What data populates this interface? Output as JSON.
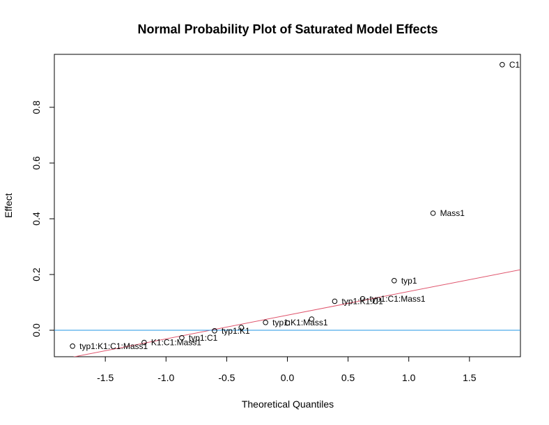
{
  "chart_data": {
    "type": "scatter",
    "title": "Normal Probability Plot of Saturated Model Effects",
    "xlabel": "Theoretical Quantiles",
    "ylabel": "Effect",
    "xlim": [
      -1.92,
      1.92
    ],
    "ylim": [
      -0.095,
      0.99
    ],
    "xticks": [
      -1.5,
      -1.0,
      -0.5,
      0.0,
      0.5,
      1.0,
      1.5
    ],
    "xtick_labels": [
      "-1.5",
      "-1.0",
      "-0.5",
      "0.0",
      "0.5",
      "1.0",
      "1.5"
    ],
    "yticks": [
      0.0,
      0.2,
      0.4,
      0.6,
      0.8
    ],
    "ytick_labels": [
      "0.0",
      "0.2",
      "0.4",
      "0.6",
      "0.8"
    ],
    "points": [
      {
        "x": -1.77,
        "y": -0.057,
        "label": "typ1:K1:C1:Mass1"
      },
      {
        "x": -1.18,
        "y": -0.044,
        "label": "K1:C1:Mass1"
      },
      {
        "x": -0.87,
        "y": -0.027,
        "label": "typ1:C1"
      },
      {
        "x": -0.6,
        "y": -0.002,
        "label": "typ1:K1"
      },
      {
        "x": -0.38,
        "y": 0.01,
        "label": ""
      },
      {
        "x": -0.18,
        "y": 0.028,
        "label": "typ1:K1:Mass1"
      },
      {
        "x": 0.0,
        "y": 0.026,
        "label": ""
      },
      {
        "x": 0.2,
        "y": 0.04,
        "label": ""
      },
      {
        "x": 0.39,
        "y": 0.104,
        "label": "typ1:K1:C1"
      },
      {
        "x": 0.62,
        "y": 0.113,
        "label": "typ1:C1:Mass1"
      },
      {
        "x": 0.88,
        "y": 0.178,
        "label": "typ1"
      },
      {
        "x": 1.2,
        "y": 0.42,
        "label": "Mass1"
      },
      {
        "x": 1.77,
        "y": 0.953,
        "label": "C1"
      }
    ],
    "reference_line": {
      "intercept": 0.054,
      "slope": 0.085,
      "color": "#DF536B"
    },
    "zero_line": {
      "y": 0,
      "color": "#2297E6"
    },
    "grid": false,
    "legend": "none"
  }
}
